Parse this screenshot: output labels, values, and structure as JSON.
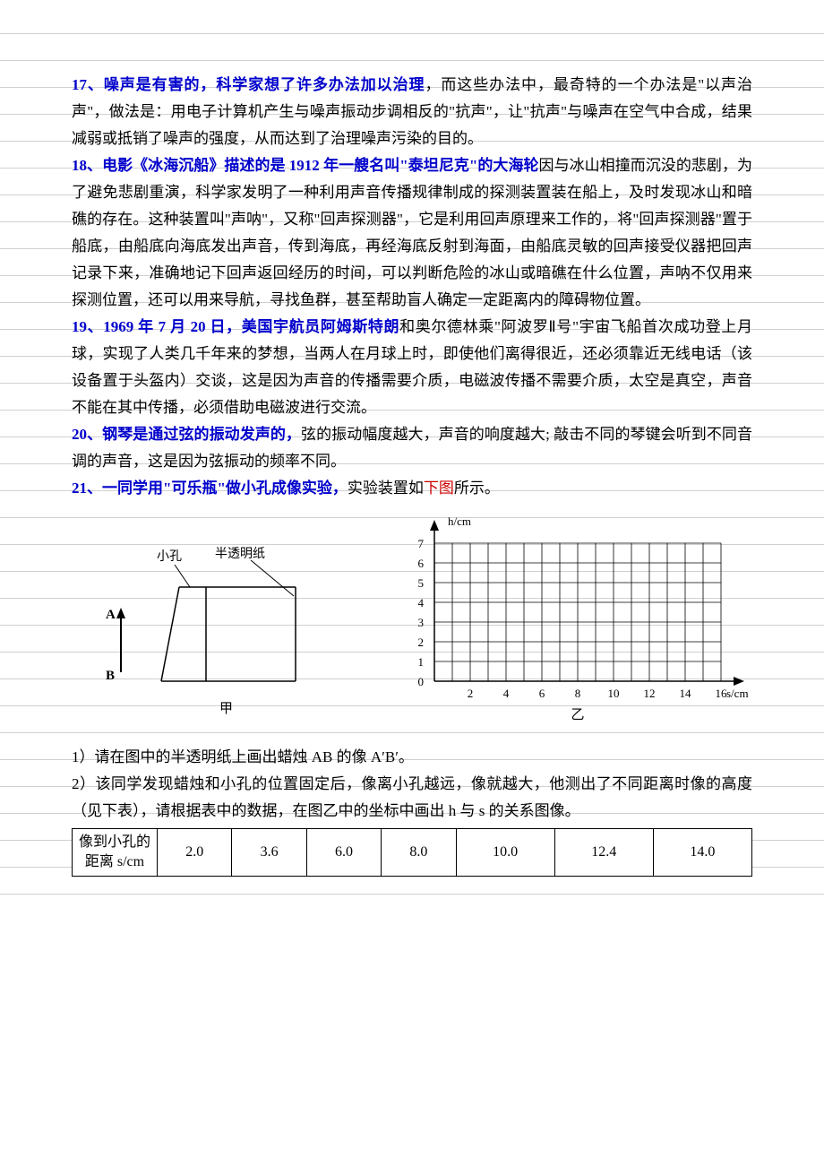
{
  "items": {
    "p17": {
      "lead": "17、噪声是有害的，科学家想了许多办法加以治理",
      "body": "，而这些办法中，最奇特的一个办法是\"以声治声\"，做法是：用电子计算机产生与噪声振动步调相反的\"抗声\"，让\"抗声\"与噪声在空气中合成，结果减弱或抵销了噪声的强度，从而达到了治理噪声污染的目的。"
    },
    "p18": {
      "lead": "18、电影《冰海沉船》描述的是 1912 年一艘名叫\"泰坦尼克\"的大海轮",
      "body": "因与冰山相撞而沉没的悲剧，为了避免悲剧重演，科学家发明了一种利用声音传播规律制成的探测装置装在船上，及时发现冰山和暗礁的存在。这种装置叫\"声呐\"，又称\"回声探测器\"，它是利用回声原理来工作的，将\"回声探测器\"置于船底，由船底向海底发出声音，传到海底，再经海底反射到海面，由船底灵敏的回声接受仪器把回声记录下来，准确地记下回声返回经历的时间，可以判断危险的冰山或暗礁在什么位置，声呐不仅用来探测位置，还可以用来导航，寻找鱼群，甚至帮助盲人确定一定距离内的障碍物位置。"
    },
    "p19": {
      "lead": "19、1969 年 7 月 20 日，美国宇航员阿姆斯特朗",
      "body": "和奥尔德林乘\"阿波罗Ⅱ号\"宇宙飞船首次成功登上月球，实现了人类几千年来的梦想，当两人在月球上时，即使他们离得很近，还必须靠近无线电话（该设备置于头盔内）交谈，这是因为声音的传播需要介质，电磁波传播不需要介质，太空是真空，声音不能在其中传播，必须借助电磁波进行交流。"
    },
    "p20": {
      "lead": "20、钢琴是通过弦的振动发声的，",
      "body": "弦的振动幅度越大，声音的响度越大; 敲击不同的琴键会听到不同音调的声音，这是因为弦振动的频率不同。"
    },
    "p21": {
      "lead": "21、一同学用\"可乐瓶\"做小孔成像实验，",
      "body_a": "实验装置如",
      "red": "下图",
      "body_b": "所示。"
    },
    "q1": "1）请在图中的半透明纸上画出蜡烛 AB 的像 A′B′。",
    "q2": "2）该同学发现蜡烛和小孔的位置固定后，像离小孔越远，像就越大，他测出了不同距离时像的高度（见下表），请根据表中的数据，在图乙中的坐标中画出 h 与 s 的关系图像。"
  },
  "fig_left": {
    "label_hole": "小孔",
    "label_paper": "半透明纸",
    "label_A": "A",
    "label_B": "B",
    "caption": "甲",
    "line_color": "#000000",
    "fontsize": 14
  },
  "fig_right": {
    "ylabel": "h/cm",
    "xlabel": "s/cm",
    "caption": "乙",
    "y_ticks": [
      0,
      1,
      2,
      3,
      4,
      5,
      6,
      7
    ],
    "x_ticks": [
      2,
      4,
      6,
      8,
      10,
      12,
      14,
      16
    ],
    "axis_color": "#000000",
    "grid_color": "#000000",
    "fontsize": 13
  },
  "table": {
    "row_label": "像到小孔的距离 s/cm",
    "values": [
      "2.0",
      "3.6",
      "6.0",
      "8.0",
      "10.0",
      "12.4",
      "14.0"
    ],
    "border_color": "#000000",
    "fontsize": 16
  }
}
